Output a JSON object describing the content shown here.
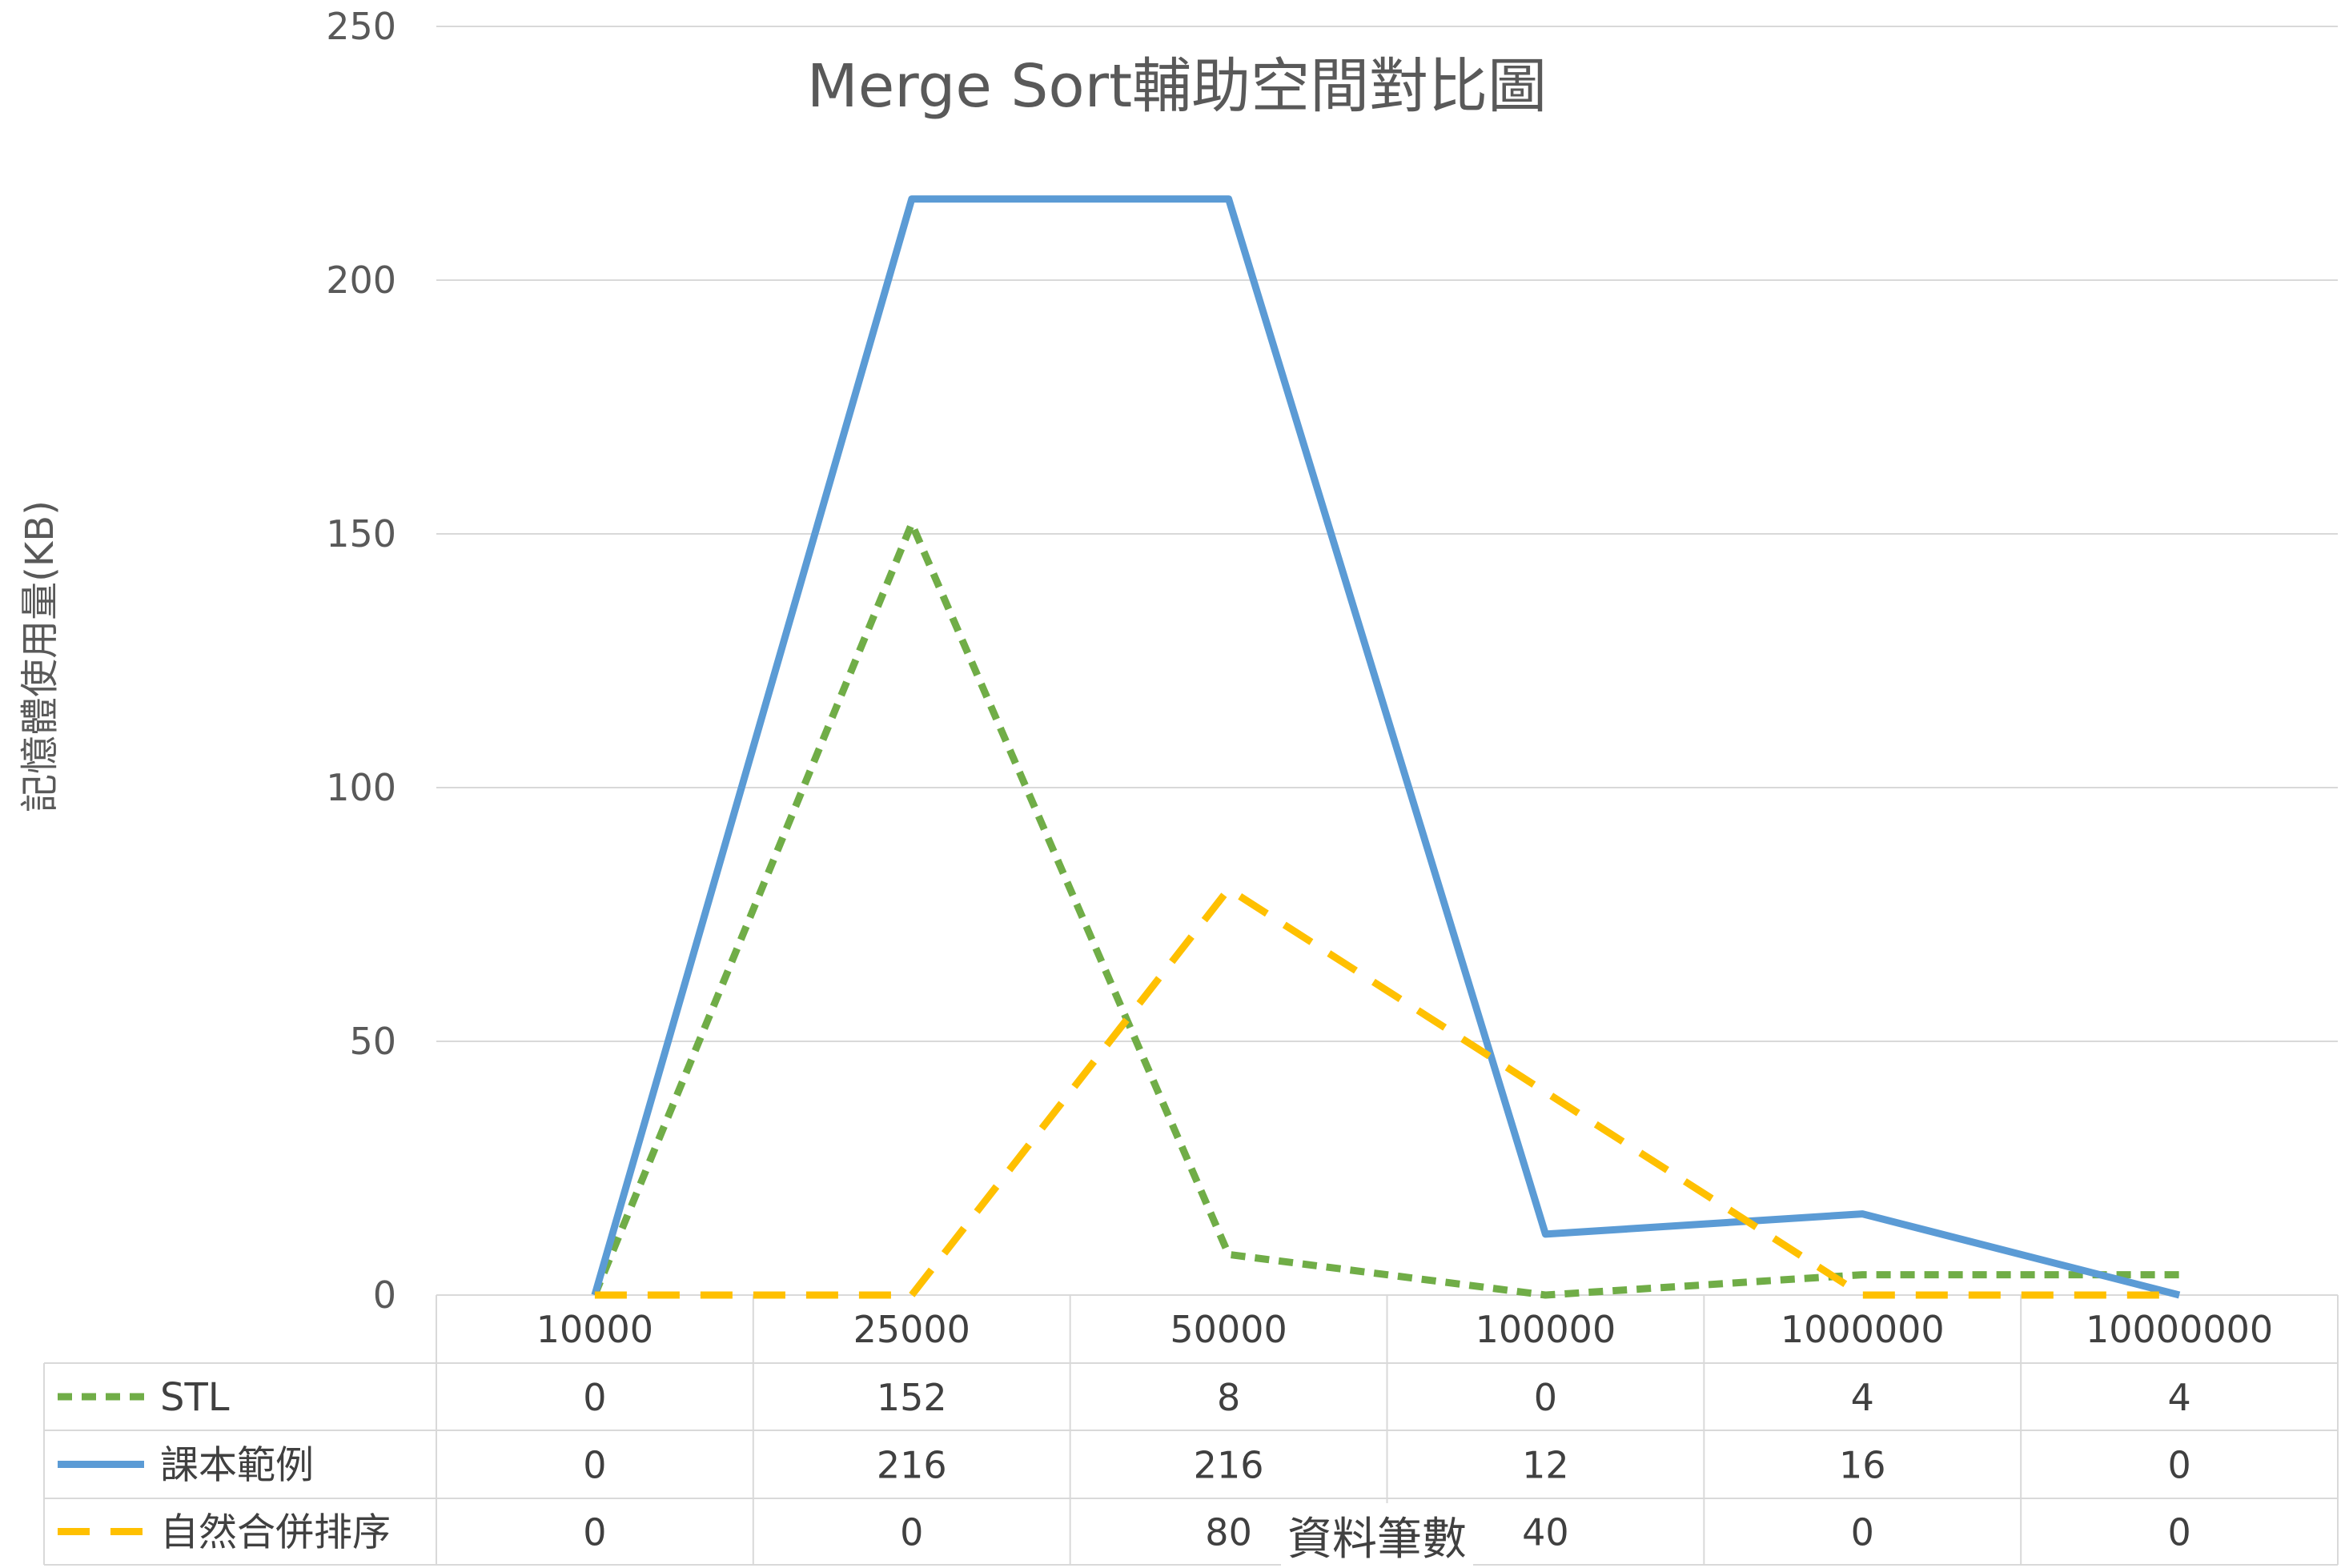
{
  "chart_data": {
    "type": "line",
    "title": "Merge Sort輔助空間對比圖",
    "xlabel": "資料筆數",
    "ylabel": "記憶體使用量(KB)",
    "categories": [
      "10000",
      "25000",
      "50000",
      "100000",
      "1000000",
      "10000000"
    ],
    "ylim": [
      0,
      250
    ],
    "yticks": [
      "0",
      "50",
      "100",
      "150",
      "200",
      "250"
    ],
    "grid": true,
    "legend": "data-table",
    "series": [
      {
        "name": "STL",
        "values": [
          0,
          152,
          8,
          0,
          4,
          4
        ],
        "color": "#70AD47",
        "style": "dashed"
      },
      {
        "name": "課本範例",
        "values": [
          0,
          216,
          216,
          12,
          16,
          0
        ],
        "color": "#5B9BD5",
        "style": "solid"
      },
      {
        "name": "自然合併排序",
        "values": [
          0,
          0,
          80,
          40,
          0,
          0
        ],
        "color": "#FFC000",
        "style": "long-dashed"
      }
    ]
  }
}
